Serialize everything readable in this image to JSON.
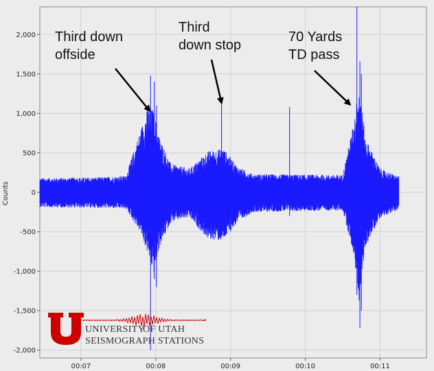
{
  "chart_data": {
    "type": "line",
    "title": "",
    "ylabel": "Counts",
    "xlabel": "",
    "ylim": [
      -2100,
      2350
    ],
    "xlim_minutes": [
      6.45,
      11.62
    ],
    "yticks": [
      -2000,
      -1500,
      -1000,
      -500,
      0,
      500,
      1000,
      1500,
      2000
    ],
    "ytick_labels": [
      "-2,000",
      "-1,500",
      "-1,000",
      "-500",
      "0",
      "500",
      "1,000",
      "1,500",
      "2,000"
    ],
    "xticks_minutes": [
      7,
      8,
      9,
      10,
      11
    ],
    "xtick_labels": [
      "00:07",
      "00:08",
      "00:09",
      "00:10",
      "00:11"
    ],
    "series_color": "#1a1aff",
    "baseline_amplitude": 150,
    "signal_end_minutes": 11.25,
    "envelope": [
      {
        "t": 6.45,
        "up": 180,
        "down": -190
      },
      {
        "t": 7.3,
        "up": 190,
        "down": -200
      },
      {
        "t": 7.6,
        "up": 210,
        "down": -210
      },
      {
        "t": 7.8,
        "up": 800,
        "down": -520
      },
      {
        "t": 7.9,
        "up": 1100,
        "down": -800
      },
      {
        "t": 7.97,
        "up": 1050,
        "down": -1050
      },
      {
        "t": 8.05,
        "up": 700,
        "down": -700
      },
      {
        "t": 8.2,
        "up": 360,
        "down": -380
      },
      {
        "t": 8.45,
        "up": 300,
        "down": -320
      },
      {
        "t": 8.7,
        "up": 520,
        "down": -600
      },
      {
        "t": 8.9,
        "up": 560,
        "down": -620
      },
      {
        "t": 9.1,
        "up": 320,
        "down": -380
      },
      {
        "t": 9.3,
        "up": 230,
        "down": -250
      },
      {
        "t": 10.5,
        "up": 220,
        "down": -230
      },
      {
        "t": 10.65,
        "up": 900,
        "down": -800
      },
      {
        "t": 10.72,
        "up": 1400,
        "down": -1400
      },
      {
        "t": 10.8,
        "up": 700,
        "down": -700
      },
      {
        "t": 11.0,
        "up": 300,
        "down": -320
      },
      {
        "t": 11.25,
        "up": 200,
        "down": -220
      }
    ],
    "spikes": [
      {
        "t": 7.93,
        "up": 1480,
        "down": -2000
      },
      {
        "t": 7.98,
        "up": 1400,
        "down": -1100
      },
      {
        "t": 8.01,
        "up": 1100,
        "down": -1200
      },
      {
        "t": 8.88,
        "up": 1180,
        "down": -300
      },
      {
        "t": 9.79,
        "up": 1080,
        "down": -300
      },
      {
        "t": 10.69,
        "up": 2350,
        "down": -1300
      },
      {
        "t": 10.73,
        "up": 1660,
        "down": -1720
      },
      {
        "t": 10.75,
        "up": 1500,
        "down": -1500
      }
    ],
    "annotations": [
      {
        "lines": [
          "Third down",
          "offside"
        ],
        "arrow_to": {
          "t": 7.92,
          "v": 1030
        }
      },
      {
        "lines": [
          "Third",
          "down stop"
        ],
        "arrow_to": {
          "t": 8.88,
          "v": 1130
        }
      },
      {
        "lines": [
          "70 Yards",
          "TD pass"
        ],
        "arrow_to": {
          "t": 10.6,
          "v": 1110
        }
      }
    ]
  },
  "logo": {
    "letter": "U",
    "line1": "UNIVERSITY",
    "line1b": "OF UTAH",
    "line2": "SEISMOGRAPH STATIONS",
    "color": "#cc0000"
  }
}
